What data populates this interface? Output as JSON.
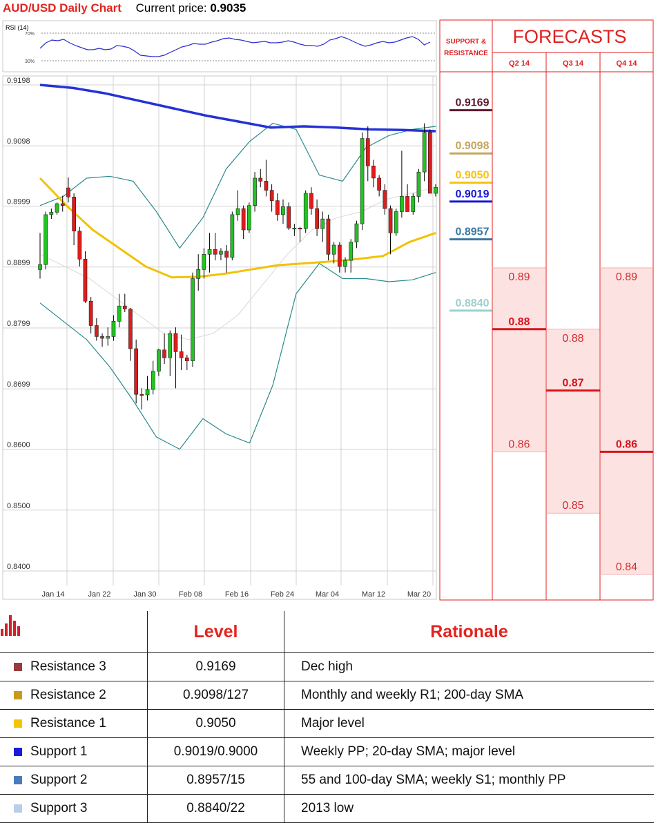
{
  "header": {
    "title": "AUD/USD Daily Chart",
    "price_label": "Current price:",
    "price_value": "0.9035"
  },
  "rsi": {
    "title": "RSI (14)",
    "upper": "70%",
    "lower": "30%",
    "values": [
      48,
      56,
      60,
      59,
      61,
      56,
      52,
      49,
      46,
      46,
      48,
      46,
      47,
      52,
      51,
      49,
      44,
      38,
      37,
      36,
      36,
      38,
      42,
      46,
      50,
      52,
      55,
      54,
      54,
      57,
      59,
      62,
      63,
      61,
      60,
      58,
      56,
      57,
      58,
      56,
      56,
      57,
      59,
      57,
      54,
      52,
      52,
      51,
      54,
      60,
      62,
      65,
      62,
      58,
      54,
      51,
      53,
      56,
      58,
      56,
      57,
      60,
      63,
      65,
      61,
      53,
      57
    ]
  },
  "chart_data": {
    "type": "candlestick",
    "title": "AUD/USD Daily Chart",
    "yticks": [
      "0.9198",
      "0.9098",
      "0.8999",
      "0.8899",
      "0.8799",
      "0.8699",
      "0.8600",
      "0.8500",
      "0.8400"
    ],
    "ylim": [
      0.839,
      0.9198
    ],
    "xticks": [
      "Jan 14",
      "Jan 22",
      "Jan 30",
      "Feb 08",
      "Feb 16",
      "Feb 24",
      "Mar 04",
      "Mar 12",
      "Mar 20"
    ],
    "candles": [
      [
        0.8895,
        0.8955,
        0.888,
        0.8903
      ],
      [
        0.8903,
        0.899,
        0.8895,
        0.8985
      ],
      [
        0.8985,
        0.8995,
        0.8978,
        0.8989
      ],
      [
        0.8989,
        0.9005,
        0.8985,
        0.9003
      ],
      [
        0.9003,
        0.9016,
        0.899,
        0.9
      ],
      [
        0.9029,
        0.9046,
        0.9005,
        0.9014
      ],
      [
        0.9014,
        0.902,
        0.8935,
        0.8958
      ],
      [
        0.8958,
        0.8965,
        0.89,
        0.8912
      ],
      [
        0.8912,
        0.8925,
        0.884,
        0.8843
      ],
      [
        0.8843,
        0.885,
        0.879,
        0.8803
      ],
      [
        0.8803,
        0.8815,
        0.8778,
        0.8785
      ],
      [
        0.8785,
        0.879,
        0.8768,
        0.8782
      ],
      [
        0.8782,
        0.88,
        0.877,
        0.8785
      ],
      [
        0.8785,
        0.882,
        0.8778,
        0.881
      ],
      [
        0.881,
        0.8855,
        0.88,
        0.8835
      ],
      [
        0.8835,
        0.8855,
        0.8825,
        0.883
      ],
      [
        0.883,
        0.8832,
        0.8745,
        0.8765
      ],
      [
        0.8765,
        0.878,
        0.8675,
        0.869
      ],
      [
        0.869,
        0.87,
        0.8665,
        0.8689
      ],
      [
        0.8689,
        0.872,
        0.868,
        0.8698
      ],
      [
        0.8698,
        0.8745,
        0.869,
        0.8728
      ],
      [
        0.8728,
        0.8765,
        0.872,
        0.8763
      ],
      [
        0.8763,
        0.879,
        0.874,
        0.875
      ],
      [
        0.875,
        0.8795,
        0.872,
        0.879
      ],
      [
        0.879,
        0.88,
        0.87,
        0.876
      ],
      [
        0.876,
        0.8788,
        0.873,
        0.875
      ],
      [
        0.875,
        0.8755,
        0.873,
        0.8745
      ],
      [
        0.8745,
        0.889,
        0.8735,
        0.888
      ],
      [
        0.888,
        0.892,
        0.886,
        0.8895
      ],
      [
        0.8895,
        0.893,
        0.888,
        0.892
      ],
      [
        0.892,
        0.8955,
        0.889,
        0.8928
      ],
      [
        0.8928,
        0.8955,
        0.891,
        0.892
      ],
      [
        0.892,
        0.893,
        0.891,
        0.8925
      ],
      [
        0.8925,
        0.8935,
        0.889,
        0.8915
      ],
      [
        0.8915,
        0.899,
        0.891,
        0.8985
      ],
      [
        0.8985,
        0.9025,
        0.8975,
        0.8995
      ],
      [
        0.8995,
        0.9,
        0.8945,
        0.896
      ],
      [
        0.896,
        0.9005,
        0.8955,
        0.9
      ],
      [
        0.9,
        0.9055,
        0.899,
        0.9045
      ],
      [
        0.9045,
        0.906,
        0.903,
        0.904
      ],
      [
        0.904,
        0.9075,
        0.9015,
        0.9025
      ],
      [
        0.9025,
        0.9035,
        0.899,
        0.9008
      ],
      [
        0.9008,
        0.902,
        0.8975,
        0.8985
      ],
      [
        0.8985,
        0.901,
        0.897,
        0.8998
      ],
      [
        0.8998,
        0.9005,
        0.896,
        0.8963
      ],
      [
        0.8963,
        0.897,
        0.895,
        0.8963
      ],
      [
        0.8963,
        0.8965,
        0.894,
        0.8962
      ],
      [
        0.8962,
        0.9025,
        0.8955,
        0.902
      ],
      [
        0.902,
        0.903,
        0.8985,
        0.8995
      ],
      [
        0.8995,
        0.901,
        0.895,
        0.8962
      ],
      [
        0.8962,
        0.899,
        0.894,
        0.8978
      ],
      [
        0.8978,
        0.8985,
        0.891,
        0.892
      ],
      [
        0.892,
        0.894,
        0.8905,
        0.8935
      ],
      [
        0.8935,
        0.894,
        0.889,
        0.89
      ],
      [
        0.89,
        0.8915,
        0.889,
        0.891
      ],
      [
        0.891,
        0.8945,
        0.889,
        0.894
      ],
      [
        0.894,
        0.8975,
        0.893,
        0.897
      ],
      [
        0.897,
        0.912,
        0.896,
        0.911
      ],
      [
        0.911,
        0.913,
        0.904,
        0.9065
      ],
      [
        0.9065,
        0.9075,
        0.903,
        0.9045
      ],
      [
        0.9045,
        0.905,
        0.9015,
        0.9025
      ],
      [
        0.9025,
        0.9035,
        0.8985,
        0.8995
      ],
      [
        0.8995,
        0.9,
        0.892,
        0.8955
      ],
      [
        0.8955,
        0.8995,
        0.895,
        0.899
      ],
      [
        0.899,
        0.909,
        0.898,
        0.9015
      ],
      [
        0.9015,
        0.9035,
        0.899,
        0.899
      ],
      [
        0.899,
        0.902,
        0.8985,
        0.9015
      ],
      [
        0.9015,
        0.906,
        0.9005,
        0.9055
      ],
      [
        0.9055,
        0.9135,
        0.904,
        0.912
      ],
      [
        0.912,
        0.9125,
        0.902,
        0.902
      ],
      [
        0.902,
        0.9035,
        0.9015,
        0.903
      ]
    ],
    "sma200": [
      0.9198,
      0.9193,
      0.9184,
      0.9172,
      0.916,
      0.9148,
      0.9138,
      0.9128,
      0.913,
      0.9128,
      0.9125,
      0.9124,
      0.9122
    ],
    "sma55": [
      0.9045,
      0.9,
      0.896,
      0.893,
      0.89,
      0.8882,
      0.8883,
      0.8888,
      0.8895,
      0.8902,
      0.8905,
      0.8908,
      0.8912,
      0.8917,
      0.894,
      0.8955
    ],
    "bb_upper": [
      0.9,
      0.9015,
      0.9045,
      0.9048,
      0.904,
      0.899,
      0.893,
      0.898,
      0.906,
      0.9105,
      0.9135,
      0.9125,
      0.905,
      0.904,
      0.9095,
      0.9115,
      0.9125,
      0.913
    ],
    "bb_lower": [
      0.884,
      0.881,
      0.878,
      0.8735,
      0.868,
      0.862,
      0.86,
      0.865,
      0.8625,
      0.861,
      0.8705,
      0.8855,
      0.8905,
      0.888,
      0.888,
      0.8875,
      0.8878,
      0.889
    ],
    "bb_mid": [
      0.892,
      0.89,
      0.888,
      0.885,
      0.882,
      0.879,
      0.878,
      0.879,
      0.882,
      0.887,
      0.892,
      0.896,
      0.898,
      0.899,
      0.901,
      0.902,
      0.903
    ],
    "pivots": [
      {
        "label": "0.9169",
        "value": 0.9169,
        "color": "#5a1a2e"
      },
      {
        "label": "0.9098",
        "value": 0.9098,
        "color": "#c6a55c"
      },
      {
        "label": "0.9050",
        "value": 0.905,
        "color": "#f5c211"
      },
      {
        "label": "0.9019",
        "value": 0.9019,
        "color": "#1818d0"
      },
      {
        "label": "0.8957",
        "value": 0.8957,
        "color": "#3a78a2"
      },
      {
        "label": "0.8840",
        "value": 0.884,
        "color": "#9ccfd0"
      }
    ],
    "forecasts": {
      "title": "FORECASTS",
      "sr_header": "SUPPORT & RESISTANCE",
      "quarters": [
        {
          "name": "Q2 14",
          "high": "0.89",
          "high_v": 0.89,
          "mid": "0.88",
          "mid_v": 0.88,
          "low": "0.86",
          "low_v": 0.86
        },
        {
          "name": "Q3 14",
          "high": "0.88",
          "high_v": 0.88,
          "mid": "0.87",
          "mid_v": 0.87,
          "low": "0.85",
          "low_v": 0.85
        },
        {
          "name": "Q4 14",
          "high": "0.89",
          "high_v": 0.89,
          "mid": "0.86",
          "mid_v": 0.86,
          "low": "0.84",
          "low_v": 0.84
        }
      ]
    }
  },
  "table": {
    "headers": {
      "level": "Level",
      "rationale": "Rationale"
    },
    "rows": [
      {
        "name": "Resistance 3",
        "level": "0.9169",
        "rationale": "Dec high",
        "color": "#9a3b3b"
      },
      {
        "name": "Resistance 2",
        "level": "0.9098/127",
        "rationale": "Monthly and weekly R1; 200-day SMA",
        "color": "#c89a1b"
      },
      {
        "name": "Resistance 1",
        "level": "0.9050",
        "rationale": "Major level",
        "color": "#f5c400"
      },
      {
        "name": "Support 1",
        "level": "0.9019/0.9000",
        "rationale": "Weekly PP; 20-day SMA; major level",
        "color": "#1a1ad8"
      },
      {
        "name": "Support 2",
        "level": "0.8957/15",
        "rationale": "55 and 100-day SMA; weekly S1; monthly PP",
        "color": "#4a7bbf"
      },
      {
        "name": "Support 3",
        "level": "0.8840/22",
        "rationale": "2013 low",
        "color": "#b9cfe8"
      }
    ]
  }
}
